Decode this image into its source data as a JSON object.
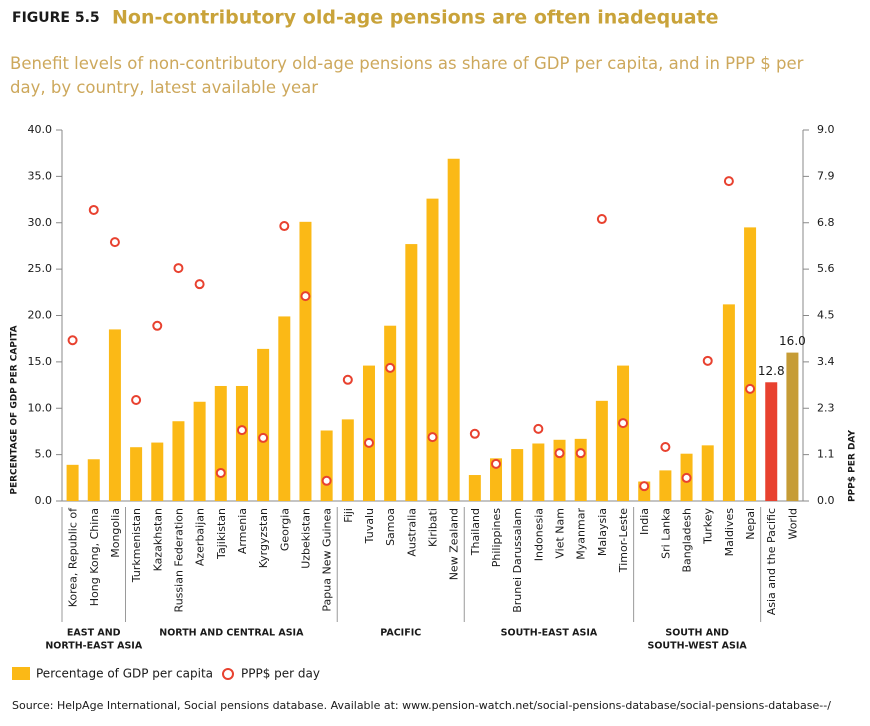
{
  "chart_data": {
    "type": "bar",
    "figure_label": "FIGURE 5.5",
    "title": "Non-contributory old-age pensions are often inadequate",
    "subtitle": "Benefit levels of non-contributory old-age pensions as share of GDP per capita, and in PPP $ per day, by country, latest available year",
    "y_label": "PERCENTAGE OF GDP PER CAPITA",
    "y2_label": "PPP$ PER DAY",
    "source": "Source: HelpAge International, Social pensions database. Available at: www.pension-watch.net/social-pensions-database/social-pensions-database--/",
    "categories": [
      "Korea, Republic of",
      "Hong Kong, China",
      "Mongolia",
      "Turkmenistan",
      "Kazakhstan",
      "Russian Federation",
      "Azerbaijan",
      "Tajikistan",
      "Armenia",
      "Kyrgyzstan",
      "Georgia",
      "Uzbekistan",
      "Papua New Guinea",
      "Fiji",
      "Tuvalu",
      "Samoa",
      "Australia",
      "Kiribati",
      "New Zealand",
      "Thailand",
      "Philippines",
      "Brunei Darussalam",
      "Indonesia",
      "Viet Nam",
      "Myanmar",
      "Malaysia",
      "Timor-Leste",
      "India",
      "Sri Lanka",
      "Bangladesh",
      "Turkey",
      "Maldives",
      "Nepal",
      "Asia and the Pacific",
      "World"
    ],
    "groups": [
      {
        "label": [
          "EAST AND",
          "NORTH-EAST ASIA"
        ],
        "count": 3
      },
      {
        "label": [
          "NORTH AND CENTRAL ASIA"
        ],
        "count": 10
      },
      {
        "label": [
          "PACIFIC"
        ],
        "count": 6
      },
      {
        "label": [
          "SOUTH-EAST ASIA"
        ],
        "count": 8
      },
      {
        "label": [
          "SOUTH AND",
          "SOUTH-WEST ASIA"
        ],
        "count": 6
      }
    ],
    "series": [
      {
        "name": "Percentage of GDP per capita",
        "color": "#fbb916",
        "colors": [
          "#fbb916",
          "#fbb916",
          "#fbb916",
          "#fbb916",
          "#fbb916",
          "#fbb916",
          "#fbb916",
          "#fbb916",
          "#fbb916",
          "#fbb916",
          "#fbb916",
          "#fbb916",
          "#fbb916",
          "#fbb916",
          "#fbb916",
          "#fbb916",
          "#fbb916",
          "#fbb916",
          "#fbb916",
          "#fbb916",
          "#fbb916",
          "#fbb916",
          "#fbb916",
          "#fbb916",
          "#fbb916",
          "#fbb916",
          "#fbb916",
          "#fbb916",
          "#fbb916",
          "#fbb916",
          "#fbb916",
          "#fbb916",
          "#fbb916",
          "#e8412f",
          "#c69c36"
        ],
        "values": [
          3.9,
          4.5,
          18.5,
          5.8,
          6.3,
          8.6,
          10.7,
          12.4,
          12.4,
          16.4,
          19.9,
          30.1,
          7.6,
          8.8,
          14.6,
          18.9,
          27.7,
          32.6,
          36.9,
          2.8,
          4.6,
          5.6,
          6.2,
          6.6,
          6.7,
          10.8,
          14.6,
          2.1,
          3.3,
          5.1,
          6.0,
          21.2,
          29.5,
          12.8,
          16.0
        ],
        "value_labels": [
          null,
          null,
          null,
          null,
          null,
          null,
          null,
          null,
          null,
          null,
          null,
          null,
          null,
          null,
          null,
          null,
          null,
          null,
          null,
          null,
          null,
          null,
          null,
          null,
          null,
          null,
          null,
          null,
          null,
          null,
          null,
          null,
          null,
          "12.8",
          "16.0"
        ]
      },
      {
        "name": "PPP$ per day",
        "color": "#e8412f",
        "axis": "y2",
        "marker": "circle",
        "values": [
          3.9,
          7.06,
          6.28,
          2.45,
          4.25,
          5.65,
          5.26,
          0.68,
          1.72,
          1.53,
          6.67,
          4.97,
          0.49,
          2.94,
          1.41,
          3.23,
          null,
          1.55,
          null,
          1.63,
          0.9,
          null,
          1.75,
          1.16,
          1.16,
          6.84,
          1.89,
          0.36,
          1.31,
          0.56,
          3.4,
          7.76,
          2.72,
          null,
          null
        ]
      }
    ],
    "ylim": [
      0,
      40
    ],
    "yticks": [
      {
        "value": 0,
        "label": "0.0"
      },
      {
        "value": 5,
        "label": "5.0"
      },
      {
        "value": 10,
        "label": "10.0"
      },
      {
        "value": 15,
        "label": "15.0"
      },
      {
        "value": 20,
        "label": "20.0"
      },
      {
        "value": 25,
        "label": "25.0"
      },
      {
        "value": 30,
        "label": "30.0"
      },
      {
        "value": 35,
        "label": "35.0"
      },
      {
        "value": 40,
        "label": "40.0"
      }
    ],
    "y2lim": [
      0,
      9
    ],
    "y2ticks": [
      {
        "value": 0,
        "label": "0.0"
      },
      {
        "value": 1.125,
        "label": "1.1"
      },
      {
        "value": 2.25,
        "label": "2.3"
      },
      {
        "value": 3.375,
        "label": "3.4"
      },
      {
        "value": 4.5,
        "label": "4.5"
      },
      {
        "value": 5.625,
        "label": "5.6"
      },
      {
        "value": 6.75,
        "label": "6.8"
      },
      {
        "value": 7.875,
        "label": "7.9"
      },
      {
        "value": 9,
        "label": "9.0"
      }
    ],
    "grid": false
  }
}
